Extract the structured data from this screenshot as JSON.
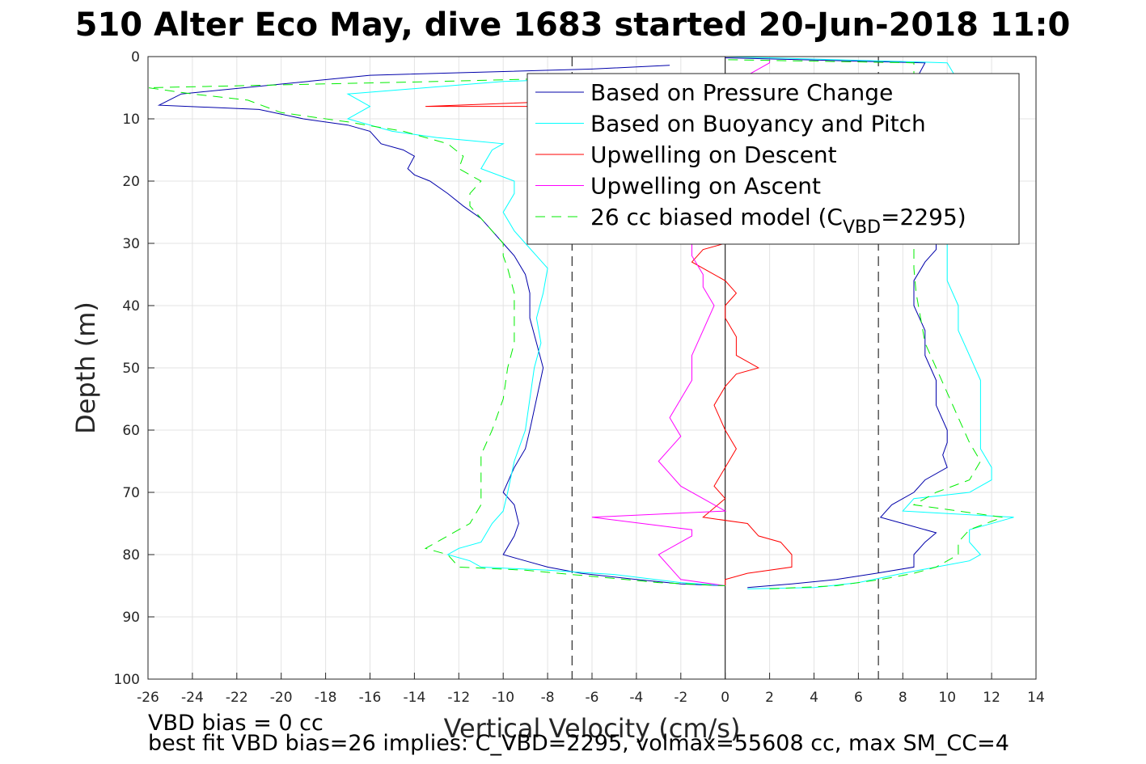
{
  "chart_data": {
    "type": "line",
    "title": "510 Alter Eco May, dive 1683 started 20-Jun-2018 11:0",
    "xlabel": "Vertical Velocity (cm/s)",
    "ylabel": "Depth (m)",
    "xlim": [
      -26,
      14
    ],
    "ylim": [
      0,
      100
    ],
    "y_reversed": true,
    "grid": true,
    "legend_position": "top-right",
    "x_ticks": [
      -26,
      -24,
      -22,
      -20,
      -18,
      -16,
      -14,
      -12,
      -10,
      -8,
      -6,
      -4,
      -2,
      0,
      2,
      4,
      6,
      8,
      10,
      12,
      14
    ],
    "y_ticks": [
      0,
      10,
      20,
      30,
      40,
      50,
      60,
      70,
      80,
      90,
      100
    ],
    "reference_lines": [
      {
        "x": -6.9,
        "style": "dashed",
        "color": "#000000"
      },
      {
        "x": 6.9,
        "style": "dashed",
        "color": "#000000"
      },
      {
        "x": 0,
        "style": "solid",
        "color": "#000000"
      }
    ],
    "series": [
      {
        "name": "Based on Pressure Change",
        "color": "#0000aa",
        "dash": false,
        "descent": [
          [
            -2.5,
            1.4
          ],
          [
            -6,
            2
          ],
          [
            -16,
            3
          ],
          [
            -24.5,
            6
          ],
          [
            -25.5,
            7.8
          ],
          [
            -21,
            8.5
          ],
          [
            -19,
            10
          ],
          [
            -17,
            11
          ],
          [
            -16,
            12
          ],
          [
            -15.5,
            14
          ],
          [
            -14.5,
            15
          ],
          [
            -14,
            16
          ],
          [
            -14.3,
            18
          ],
          [
            -14,
            19
          ],
          [
            -13.3,
            20
          ],
          [
            -12.5,
            22
          ],
          [
            -11.8,
            24
          ],
          [
            -11,
            26
          ],
          [
            -10.5,
            28
          ],
          [
            -10,
            30
          ],
          [
            -9.5,
            32
          ],
          [
            -9,
            35
          ],
          [
            -8.8,
            38
          ],
          [
            -8.8,
            42
          ],
          [
            -8.5,
            46
          ],
          [
            -8.2,
            50
          ],
          [
            -8.5,
            55
          ],
          [
            -8.8,
            60
          ],
          [
            -9,
            63
          ],
          [
            -9.5,
            66
          ],
          [
            -10,
            70
          ],
          [
            -9.5,
            72
          ],
          [
            -9.3,
            75
          ],
          [
            -9.5,
            77
          ],
          [
            -10,
            80
          ],
          [
            -9,
            81
          ],
          [
            -8,
            82
          ],
          [
            -6.5,
            83
          ],
          [
            -4,
            84
          ],
          [
            -2,
            84.7
          ],
          [
            0,
            85
          ]
        ],
        "ascent": [
          [
            1,
            85.3
          ],
          [
            3,
            84.7
          ],
          [
            5,
            84
          ],
          [
            6.8,
            83
          ],
          [
            8.5,
            82
          ],
          [
            8.5,
            80
          ],
          [
            9,
            78
          ],
          [
            9.5,
            76.5
          ],
          [
            8,
            75
          ],
          [
            7,
            74
          ],
          [
            7.5,
            72
          ],
          [
            8.5,
            70
          ],
          [
            9,
            68
          ],
          [
            10,
            66
          ],
          [
            9.8,
            64
          ],
          [
            10,
            62
          ],
          [
            10,
            60
          ],
          [
            9.5,
            56
          ],
          [
            9.5,
            52
          ],
          [
            9,
            48
          ],
          [
            9,
            44
          ],
          [
            8.5,
            40
          ],
          [
            8.5,
            36
          ],
          [
            9,
            33
          ],
          [
            9.5,
            31
          ],
          [
            9.5,
            28
          ],
          [
            9,
            25
          ],
          [
            8.5,
            20
          ],
          [
            8.5,
            15
          ],
          [
            8.5,
            10
          ],
          [
            8.5,
            5
          ],
          [
            8.7,
            3
          ],
          [
            9,
            1
          ],
          [
            0,
            0.2
          ]
        ]
      },
      {
        "name": "Based on Buoyancy and Pitch",
        "color": "#00ffff",
        "dash": false,
        "descent": [
          [
            -2.5,
            3
          ],
          [
            -10,
            4
          ],
          [
            -17,
            6
          ],
          [
            -16,
            8
          ],
          [
            -17,
            10
          ],
          [
            -15,
            12
          ],
          [
            -13,
            13
          ],
          [
            -11.5,
            13.5
          ],
          [
            -10,
            14
          ],
          [
            -10.5,
            15
          ],
          [
            -11,
            18
          ],
          [
            -9.5,
            20
          ],
          [
            -9.5,
            22
          ],
          [
            -10,
            25
          ],
          [
            -9.5,
            28
          ],
          [
            -9,
            30
          ],
          [
            -8.5,
            32
          ],
          [
            -8,
            34
          ],
          [
            -8.2,
            38
          ],
          [
            -8.5,
            42
          ],
          [
            -8.3,
            46
          ],
          [
            -8.6,
            50
          ],
          [
            -8.8,
            55
          ],
          [
            -9,
            60
          ],
          [
            -9.5,
            65
          ],
          [
            -9.8,
            70
          ],
          [
            -10,
            73
          ],
          [
            -10.5,
            75
          ],
          [
            -11,
            78
          ],
          [
            -12,
            79
          ],
          [
            -12.5,
            80
          ],
          [
            -11.5,
            81
          ],
          [
            -11,
            82
          ],
          [
            -8,
            82.5
          ],
          [
            -5,
            83.2
          ],
          [
            -2,
            84.5
          ],
          [
            0,
            85
          ]
        ],
        "ascent": [
          [
            1,
            85.5
          ],
          [
            4,
            85.3
          ],
          [
            6,
            84.5
          ],
          [
            8,
            83
          ],
          [
            9.5,
            82
          ],
          [
            11,
            81
          ],
          [
            11.5,
            80
          ],
          [
            11,
            78
          ],
          [
            11,
            76
          ],
          [
            13,
            74
          ],
          [
            8,
            73
          ],
          [
            8.5,
            71
          ],
          [
            11,
            70
          ],
          [
            12,
            68
          ],
          [
            12,
            66
          ],
          [
            11.5,
            63
          ],
          [
            11.5,
            60
          ],
          [
            11.5,
            56
          ],
          [
            11.5,
            52
          ],
          [
            11,
            48
          ],
          [
            10.5,
            44
          ],
          [
            10.5,
            40
          ],
          [
            10,
            36
          ],
          [
            10,
            32
          ],
          [
            10,
            28
          ],
          [
            10,
            24
          ],
          [
            9.8,
            18
          ],
          [
            10,
            12
          ],
          [
            10.5,
            8
          ],
          [
            10.5,
            4
          ],
          [
            10,
            1
          ],
          [
            0,
            0
          ]
        ]
      },
      {
        "name": "Upwelling on Descent",
        "color": "#ff0000",
        "dash": false,
        "descent": [
          [
            -2,
            6.5
          ],
          [
            -6,
            7
          ],
          [
            -13.5,
            8
          ],
          [
            -3,
            8
          ],
          [
            -2,
            8.5
          ],
          [
            -1,
            9
          ],
          [
            0,
            10
          ],
          [
            0,
            15
          ],
          [
            0,
            20
          ],
          [
            0,
            25
          ],
          [
            0,
            30
          ],
          [
            -1,
            31
          ],
          [
            -1.5,
            33
          ],
          [
            0,
            36
          ],
          [
            0.5,
            38
          ],
          [
            0,
            40
          ],
          [
            0,
            42
          ],
          [
            0.5,
            45
          ],
          [
            0.5,
            48
          ],
          [
            1.5,
            50
          ],
          [
            0.5,
            51
          ],
          [
            0,
            53
          ],
          [
            -0.5,
            56
          ],
          [
            0,
            60
          ],
          [
            0.5,
            63
          ],
          [
            0,
            66
          ],
          [
            -0.5,
            69
          ],
          [
            0,
            71
          ],
          [
            -1,
            74
          ],
          [
            1,
            75
          ],
          [
            1.5,
            77
          ],
          [
            2.5,
            78
          ],
          [
            3,
            80
          ],
          [
            3,
            82
          ],
          [
            1,
            83
          ],
          [
            0,
            84
          ],
          [
            0,
            85
          ]
        ]
      },
      {
        "name": "Upwelling on Ascent",
        "color": "#ff00ff",
        "dash": false,
        "ascent": [
          [
            0,
            85
          ],
          [
            -2,
            84
          ],
          [
            -2.5,
            82
          ],
          [
            -3,
            80
          ],
          [
            -2,
            78
          ],
          [
            -1.5,
            77
          ],
          [
            -1.5,
            76
          ],
          [
            -6,
            74
          ],
          [
            0,
            73
          ],
          [
            -1,
            71
          ],
          [
            -2,
            69
          ],
          [
            -2.5,
            67
          ],
          [
            -3,
            65
          ],
          [
            -2.5,
            63
          ],
          [
            -2,
            61
          ],
          [
            -2.5,
            58
          ],
          [
            -2,
            55
          ],
          [
            -1.5,
            52
          ],
          [
            -1.5,
            48
          ],
          [
            -1,
            44
          ],
          [
            -0.5,
            40
          ],
          [
            -1,
            37
          ],
          [
            -1,
            35
          ],
          [
            -1.5,
            32
          ],
          [
            -1.5,
            30
          ],
          [
            0,
            25
          ],
          [
            0,
            20
          ],
          [
            0,
            10
          ],
          [
            0,
            5
          ],
          [
            2,
            1
          ],
          [
            2,
            0.5
          ]
        ]
      },
      {
        "name": "26 cc biased model (C_VBD=2295)",
        "label_main": "26 cc biased model (C",
        "label_sub": "VBD",
        "label_tail": "=2295)",
        "color": "#00ee00",
        "dash": true,
        "descent": [
          [
            -2,
            3
          ],
          [
            -13,
            4
          ],
          [
            -26,
            5
          ],
          [
            -24,
            6
          ],
          [
            -21.5,
            7
          ],
          [
            -20,
            9
          ],
          [
            -17,
            10.5
          ],
          [
            -14.5,
            12
          ],
          [
            -12.5,
            14
          ],
          [
            -11.8,
            16
          ],
          [
            -12,
            18
          ],
          [
            -11,
            20
          ],
          [
            -11.5,
            22
          ],
          [
            -11.5,
            24
          ],
          [
            -11,
            26
          ],
          [
            -10.5,
            28
          ],
          [
            -10,
            30
          ],
          [
            -10,
            32
          ],
          [
            -9.8,
            34
          ],
          [
            -9.5,
            38
          ],
          [
            -9.5,
            42
          ],
          [
            -9.5,
            46
          ],
          [
            -9.8,
            50
          ],
          [
            -10,
            55
          ],
          [
            -10.5,
            60
          ],
          [
            -11,
            64
          ],
          [
            -11,
            68
          ],
          [
            -11,
            72
          ],
          [
            -11.5,
            75
          ],
          [
            -12.5,
            77
          ],
          [
            -13,
            78
          ],
          [
            -13.5,
            79
          ],
          [
            -12.5,
            80
          ],
          [
            -12,
            82
          ],
          [
            -9,
            82.5
          ],
          [
            -6,
            83.5
          ],
          [
            -3,
            84.5
          ],
          [
            0,
            85
          ]
        ],
        "ascent": [
          [
            2,
            85.5
          ],
          [
            5,
            85
          ],
          [
            7,
            84
          ],
          [
            8.5,
            83
          ],
          [
            9.5,
            82
          ],
          [
            10.5,
            80
          ],
          [
            10.5,
            78
          ],
          [
            11,
            76
          ],
          [
            12.5,
            74
          ],
          [
            8.5,
            72
          ],
          [
            9.5,
            70
          ],
          [
            11,
            68
          ],
          [
            11.5,
            65
          ],
          [
            11,
            62
          ],
          [
            10.5,
            58
          ],
          [
            10,
            54
          ],
          [
            9.5,
            50
          ],
          [
            9,
            46
          ],
          [
            8.8,
            42
          ],
          [
            8.6,
            38
          ],
          [
            8.5,
            34
          ],
          [
            8.5,
            30
          ],
          [
            8.5,
            25
          ],
          [
            8.5,
            20
          ],
          [
            8.5,
            15
          ],
          [
            8.5,
            10
          ],
          [
            8.5,
            5
          ],
          [
            8.5,
            1
          ],
          [
            0,
            0.5
          ]
        ]
      }
    ],
    "footnotes": [
      "VBD bias = 0 cc",
      "best fit VBD bias=26 implies: C_VBD=2295, volmax=55608 cc, max SM_CC=4"
    ]
  }
}
